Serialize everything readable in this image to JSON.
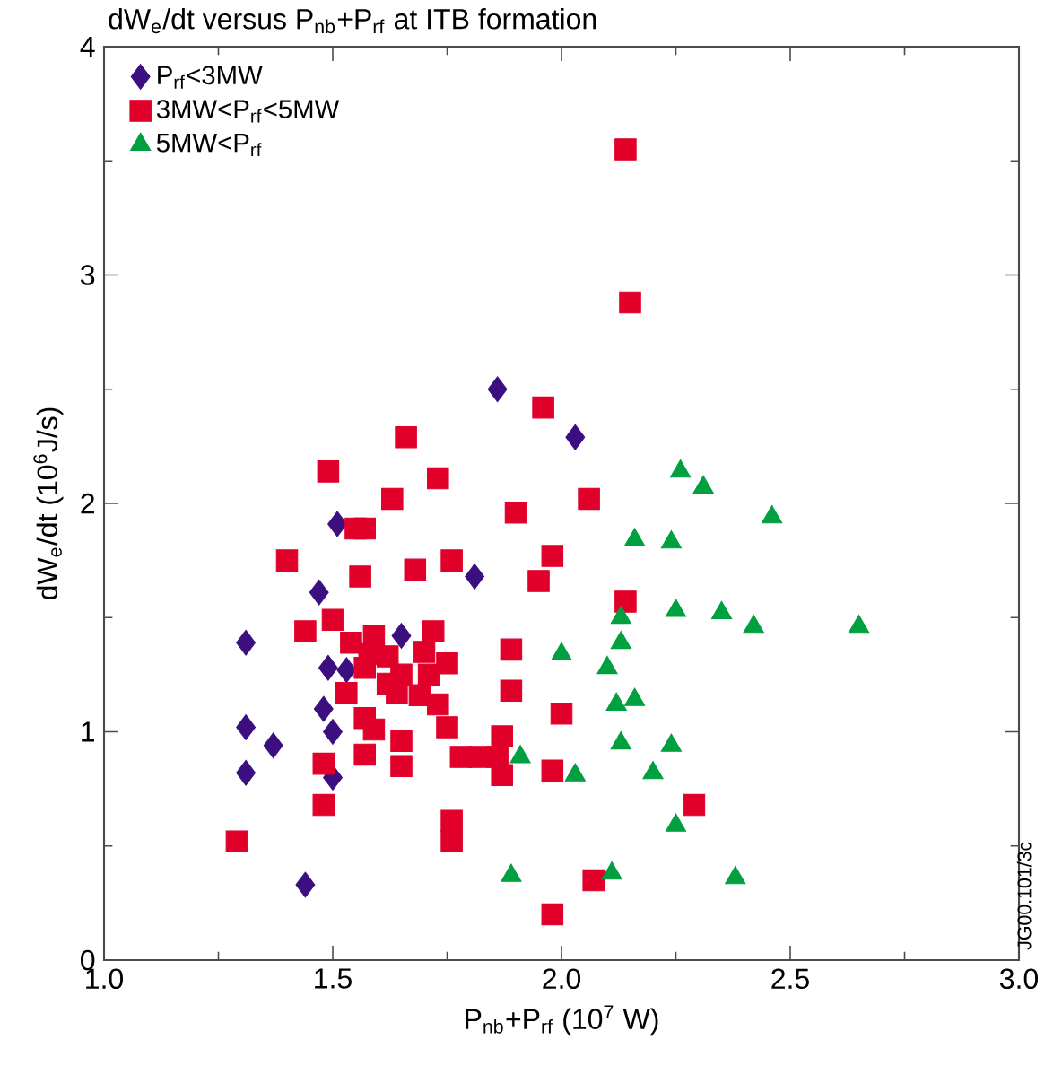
{
  "chart_data": {
    "type": "scatter",
    "title": "dW$_{e}$/dt versus P$_{nb}$+P$_{rf}$ at ITB formation",
    "xlabel": "P$_{nb}$+P$_{rf}$ (10$^{7}$ W)",
    "ylabel": "dW$_{e}$/dt (10$^{6}$J/s)",
    "xlim": [
      1.0,
      3.0
    ],
    "ylim": [
      0,
      4
    ],
    "xticks": [
      {
        "value": 1.0,
        "label": "1.0"
      },
      {
        "value": 1.5,
        "label": "1.5"
      },
      {
        "value": 2.0,
        "label": "2.0"
      },
      {
        "value": 2.5,
        "label": "2.5"
      },
      {
        "value": 3.0,
        "label": "3.0"
      }
    ],
    "yticks": [
      0,
      1,
      2,
      3,
      4
    ],
    "legend": "top left",
    "annotations": [
      "JG00.101/3c"
    ],
    "series": [
      {
        "name": "P$_{rf}$<3MW",
        "color": "#3b0f80",
        "marker": "diamond",
        "x": [
          1.31,
          1.31,
          1.31,
          1.37,
          1.44,
          1.47,
          1.51,
          1.49,
          1.53,
          1.48,
          1.5,
          1.5,
          1.65,
          1.81,
          1.86,
          2.03
        ],
        "values": [
          1.39,
          1.02,
          0.82,
          0.94,
          0.33,
          1.61,
          1.91,
          1.28,
          1.27,
          1.1,
          1.0,
          0.8,
          1.42,
          1.68,
          2.5,
          2.29
        ]
      },
      {
        "name": "3MW<P$_{rf}$<5MW",
        "color": "#e0002a",
        "marker": "square",
        "x": [
          2.14,
          2.15,
          1.96,
          1.66,
          1.49,
          1.73,
          1.63,
          2.06,
          1.9,
          1.55,
          1.57,
          1.4,
          1.98,
          1.56,
          1.68,
          1.76,
          1.95,
          2.14,
          1.5,
          1.44,
          1.54,
          1.59,
          1.72,
          1.58,
          1.62,
          1.7,
          1.75,
          1.57,
          1.65,
          1.71,
          1.62,
          1.64,
          1.69,
          1.73,
          1.53,
          1.89,
          1.89,
          1.57,
          1.59,
          1.75,
          1.65,
          1.57,
          1.65,
          1.48,
          1.87,
          1.78,
          1.82,
          1.86,
          1.87,
          2.0,
          1.98,
          1.48,
          1.76,
          1.76,
          1.29,
          1.98,
          2.07,
          2.29
        ],
        "values": [
          3.55,
          2.88,
          2.42,
          2.29,
          2.14,
          2.11,
          2.02,
          2.02,
          1.96,
          1.89,
          1.89,
          1.75,
          1.77,
          1.68,
          1.71,
          1.75,
          1.66,
          1.57,
          1.49,
          1.44,
          1.39,
          1.42,
          1.44,
          1.34,
          1.33,
          1.35,
          1.3,
          1.28,
          1.25,
          1.25,
          1.21,
          1.17,
          1.16,
          1.12,
          1.17,
          1.36,
          1.18,
          1.06,
          1.01,
          1.02,
          0.96,
          0.9,
          0.85,
          0.86,
          0.98,
          0.89,
          0.89,
          0.89,
          0.81,
          1.08,
          0.83,
          0.68,
          0.61,
          0.52,
          0.52,
          0.2,
          0.35,
          0.68
        ]
      },
      {
        "name": "5MW<P$_{rf}$",
        "color": "#00a040",
        "marker": "triangle",
        "x": [
          2.26,
          2.31,
          2.46,
          2.16,
          2.24,
          2.25,
          2.35,
          2.42,
          2.65,
          2.13,
          2.13,
          2.0,
          2.1,
          2.12,
          2.16,
          2.13,
          2.24,
          1.91,
          2.03,
          2.2,
          2.25,
          1.89,
          2.11,
          2.38
        ],
        "values": [
          2.14,
          2.07,
          1.94,
          1.84,
          1.83,
          1.53,
          1.52,
          1.46,
          1.46,
          1.5,
          1.39,
          1.34,
          1.28,
          1.12,
          1.14,
          0.95,
          0.94,
          0.89,
          0.81,
          0.82,
          0.59,
          0.37,
          0.38,
          0.36
        ]
      }
    ]
  }
}
